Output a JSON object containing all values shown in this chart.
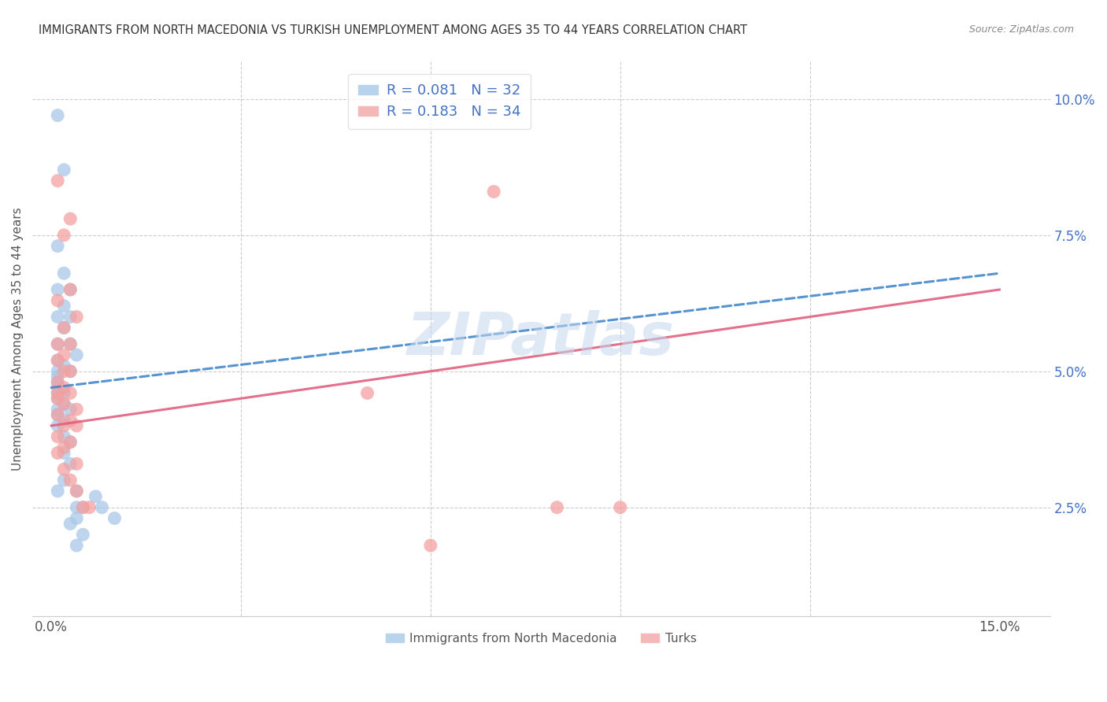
{
  "title": "IMMIGRANTS FROM NORTH MACEDONIA VS TURKISH UNEMPLOYMENT AMONG AGES 35 TO 44 YEARS CORRELATION CHART",
  "source": "Source: ZipAtlas.com",
  "ylabel": "Unemployment Among Ages 35 to 44 years",
  "watermark": "ZIPatlas",
  "legend_bottom1": "Immigrants from North Macedonia",
  "legend_bottom2": "Turks",
  "blue_color": "#a8c8e8",
  "pink_color": "#f4a0a0",
  "blue_line_color": "#4488cc",
  "pink_line_color": "#e06080",
  "blue_line": [
    [
      0.0,
      0.047
    ],
    [
      0.15,
      0.068
    ]
  ],
  "pink_line": [
    [
      0.0,
      0.04
    ],
    [
      0.15,
      0.065
    ]
  ],
  "blue_scatter": [
    [
      0.001,
      0.097
    ],
    [
      0.002,
      0.087
    ],
    [
      0.001,
      0.073
    ],
    [
      0.002,
      0.068
    ],
    [
      0.003,
      0.065
    ],
    [
      0.001,
      0.065
    ],
    [
      0.002,
      0.062
    ],
    [
      0.001,
      0.06
    ],
    [
      0.003,
      0.06
    ],
    [
      0.002,
      0.058
    ],
    [
      0.001,
      0.055
    ],
    [
      0.003,
      0.055
    ],
    [
      0.004,
      0.053
    ],
    [
      0.001,
      0.052
    ],
    [
      0.002,
      0.051
    ],
    [
      0.001,
      0.05
    ],
    [
      0.003,
      0.05
    ],
    [
      0.001,
      0.049
    ],
    [
      0.001,
      0.048
    ],
    [
      0.001,
      0.047
    ],
    [
      0.001,
      0.046
    ],
    [
      0.002,
      0.046
    ],
    [
      0.001,
      0.045
    ],
    [
      0.002,
      0.044
    ],
    [
      0.001,
      0.043
    ],
    [
      0.003,
      0.043
    ],
    [
      0.001,
      0.042
    ],
    [
      0.002,
      0.041
    ],
    [
      0.001,
      0.04
    ],
    [
      0.002,
      0.038
    ],
    [
      0.003,
      0.037
    ],
    [
      0.002,
      0.035
    ],
    [
      0.003,
      0.033
    ],
    [
      0.002,
      0.03
    ],
    [
      0.001,
      0.028
    ],
    [
      0.004,
      0.028
    ],
    [
      0.004,
      0.025
    ],
    [
      0.005,
      0.025
    ],
    [
      0.004,
      0.023
    ],
    [
      0.003,
      0.022
    ],
    [
      0.005,
      0.02
    ],
    [
      0.004,
      0.018
    ],
    [
      0.007,
      0.027
    ],
    [
      0.008,
      0.025
    ],
    [
      0.01,
      0.023
    ]
  ],
  "pink_scatter": [
    [
      0.001,
      0.085
    ],
    [
      0.003,
      0.078
    ],
    [
      0.002,
      0.075
    ],
    [
      0.003,
      0.065
    ],
    [
      0.001,
      0.063
    ],
    [
      0.004,
      0.06
    ],
    [
      0.002,
      0.058
    ],
    [
      0.001,
      0.055
    ],
    [
      0.003,
      0.055
    ],
    [
      0.002,
      0.053
    ],
    [
      0.001,
      0.052
    ],
    [
      0.002,
      0.05
    ],
    [
      0.003,
      0.05
    ],
    [
      0.001,
      0.048
    ],
    [
      0.002,
      0.047
    ],
    [
      0.001,
      0.046
    ],
    [
      0.003,
      0.046
    ],
    [
      0.001,
      0.045
    ],
    [
      0.002,
      0.044
    ],
    [
      0.004,
      0.043
    ],
    [
      0.001,
      0.042
    ],
    [
      0.003,
      0.041
    ],
    [
      0.002,
      0.04
    ],
    [
      0.004,
      0.04
    ],
    [
      0.001,
      0.038
    ],
    [
      0.003,
      0.037
    ],
    [
      0.002,
      0.036
    ],
    [
      0.001,
      0.035
    ],
    [
      0.004,
      0.033
    ],
    [
      0.002,
      0.032
    ],
    [
      0.003,
      0.03
    ],
    [
      0.004,
      0.028
    ],
    [
      0.005,
      0.025
    ],
    [
      0.006,
      0.025
    ],
    [
      0.07,
      0.083
    ],
    [
      0.05,
      0.046
    ],
    [
      0.08,
      0.025
    ],
    [
      0.09,
      0.025
    ],
    [
      0.06,
      0.018
    ]
  ],
  "xlim": [
    -0.003,
    0.158
  ],
  "ylim": [
    0.005,
    0.107
  ],
  "x_ticks": [
    0.0,
    0.03,
    0.06,
    0.09,
    0.12,
    0.15
  ],
  "x_tick_labels": [
    "0.0%",
    "",
    "",
    "",
    "",
    "15.0%"
  ],
  "y_ticks_right": [
    0.025,
    0.05,
    0.075,
    0.1
  ],
  "y_tick_labels_right": [
    "2.5%",
    "5.0%",
    "7.5%",
    "10.0%"
  ],
  "grid_color": "#cccccc",
  "bg_color": "#ffffff",
  "tick_color": "#4472c4"
}
